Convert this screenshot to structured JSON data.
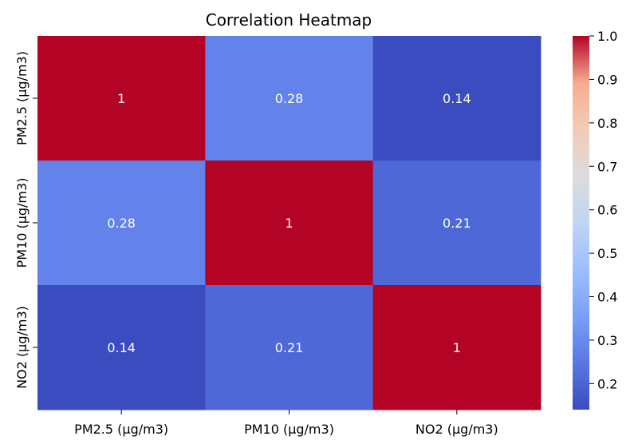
{
  "chart_data": {
    "type": "heatmap",
    "title": "Correlation Heatmap",
    "xlabel": "",
    "ylabel": "",
    "x_categories": [
      "PM2.5 (µg/m3)",
      "PM10 (µg/m3)",
      "NO2 (µg/m3)"
    ],
    "y_categories": [
      "PM2.5 (µg/m3)",
      "PM10 (µg/m3)",
      "NO2 (µg/m3)"
    ],
    "values": [
      [
        1,
        0.28,
        0.14
      ],
      [
        0.28,
        1,
        0.21
      ],
      [
        0.14,
        0.21,
        1
      ]
    ],
    "cell_labels": [
      [
        "1",
        "0.28",
        "0.14"
      ],
      [
        "0.28",
        "1",
        "0.21"
      ],
      [
        "0.14",
        "0.21",
        "1"
      ]
    ],
    "colormap": "coolwarm",
    "colorbar": {
      "range": [
        0.14,
        1.0
      ],
      "ticks": [
        1.0,
        0.9,
        0.8,
        0.7,
        0.6,
        0.5,
        0.4,
        0.3,
        0.2
      ],
      "tick_labels": [
        "1.0",
        "0.9",
        "0.8",
        "0.7",
        "0.6",
        "0.5",
        "0.4",
        "0.3",
        "0.2"
      ]
    },
    "grid": false,
    "legend": "colorbar-right"
  }
}
